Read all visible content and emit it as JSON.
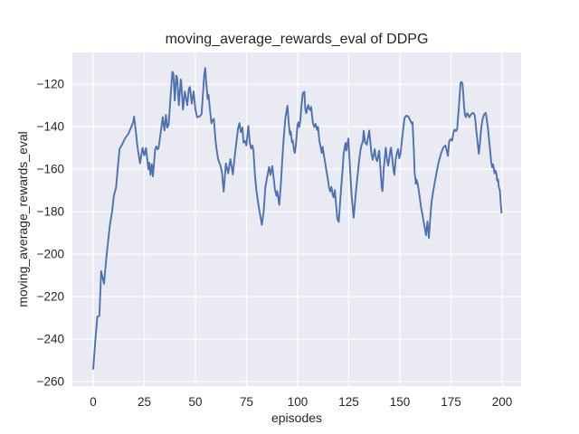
{
  "chart_data": {
    "type": "line",
    "title": "moving_average_rewards_eval of DDPG",
    "xlabel": "episodes",
    "ylabel": "moving_average_rewards_eval",
    "xlim": [
      -10.2,
      209.3
    ],
    "ylim": [
      -262.1,
      -105.1
    ],
    "xticks": [
      0,
      25,
      50,
      75,
      100,
      125,
      150,
      175,
      200
    ],
    "xtick_labels": [
      "0",
      "25",
      "50",
      "75",
      "100",
      "125",
      "150",
      "175",
      "200"
    ],
    "yticks": [
      -120,
      -140,
      -160,
      -180,
      -200,
      -220,
      -240,
      -260
    ],
    "ytick_labels": [
      "−120",
      "−140",
      "−160",
      "−180",
      "−200",
      "−220",
      "−240",
      "−260"
    ],
    "grid": true,
    "legend": "none",
    "colors": {
      "line": "#4c72b0",
      "plot_background": "#eaeaf2",
      "grid": "#ffffff",
      "text": "#262626",
      "figure_background": "#ffffff"
    },
    "series": [
      {
        "name": "moving_average_rewards_eval",
        "points": [
          [
            0,
            -254
          ],
          [
            1,
            -241
          ],
          [
            2,
            -229.5
          ],
          [
            3,
            -229
          ],
          [
            3.9,
            -208
          ],
          [
            5.3,
            -214
          ],
          [
            6.3,
            -203
          ],
          [
            7.2,
            -194.5
          ],
          [
            8.2,
            -186
          ],
          [
            9.3,
            -179.5
          ],
          [
            10.1,
            -172.5
          ],
          [
            11.2,
            -168.5
          ],
          [
            11.9,
            -160.5
          ],
          [
            12.9,
            -150.5
          ],
          [
            14.1,
            -148.5
          ],
          [
            15.6,
            -145.5
          ],
          [
            17.1,
            -143.5
          ],
          [
            18.5,
            -140.5
          ],
          [
            19.5,
            -138
          ],
          [
            20,
            -135.3
          ],
          [
            20.8,
            -142
          ],
          [
            21.7,
            -150
          ],
          [
            22.9,
            -157.3
          ],
          [
            24.1,
            -150
          ],
          [
            25,
            -153.5
          ],
          [
            25.8,
            -150
          ],
          [
            27,
            -160.1
          ],
          [
            27.4,
            -157
          ],
          [
            28,
            -162.7
          ],
          [
            28.6,
            -157.7
          ],
          [
            29.2,
            -163.4
          ],
          [
            30.3,
            -150.7
          ],
          [
            30.9,
            -149.3
          ],
          [
            31.5,
            -150.7
          ],
          [
            32,
            -150
          ],
          [
            32.6,
            -145.7
          ],
          [
            33.2,
            -141.4
          ],
          [
            34,
            -135.5
          ],
          [
            34.8,
            -141.8
          ],
          [
            35.6,
            -134.5
          ],
          [
            36.2,
            -140.5
          ],
          [
            36.9,
            -139
          ],
          [
            37.7,
            -127.8
          ],
          [
            38.7,
            -114.2
          ],
          [
            39.2,
            -115
          ],
          [
            39.9,
            -127.8
          ],
          [
            40.6,
            -116
          ],
          [
            41,
            -116.7
          ],
          [
            41.9,
            -129.9
          ],
          [
            42.8,
            -117.8
          ],
          [
            43,
            -118.5
          ],
          [
            43.9,
            -132
          ],
          [
            44.8,
            -123.5
          ],
          [
            46,
            -129.9
          ],
          [
            46.8,
            -122.1
          ],
          [
            47.3,
            -121.4
          ],
          [
            48.2,
            -129.2
          ],
          [
            49.1,
            -123.5
          ],
          [
            50,
            -132
          ],
          [
            50.8,
            -135.6
          ],
          [
            52,
            -135.2
          ],
          [
            53,
            -134.2
          ],
          [
            54.3,
            -115.7
          ],
          [
            54.8,
            -112.4
          ],
          [
            55.2,
            -118.5
          ],
          [
            56,
            -127.1
          ],
          [
            56.4,
            -124.9
          ],
          [
            57.1,
            -132
          ],
          [
            57.8,
            -138.4
          ],
          [
            58.4,
            -137
          ],
          [
            59,
            -136.3
          ],
          [
            59.8,
            -146.2
          ],
          [
            60.3,
            -150.4
          ],
          [
            61.1,
            -155.4
          ],
          [
            62.3,
            -158.5
          ],
          [
            63,
            -161.7
          ],
          [
            63.8,
            -170.6
          ],
          [
            64.9,
            -157.3
          ],
          [
            66,
            -162
          ],
          [
            67.1,
            -155.3
          ],
          [
            68.3,
            -162.5
          ],
          [
            69.3,
            -153.2
          ],
          [
            70.8,
            -141.2
          ],
          [
            71.5,
            -138.3
          ],
          [
            72.2,
            -142.6
          ],
          [
            73,
            -140.4
          ],
          [
            73.5,
            -147.5
          ],
          [
            74.3,
            -146.8
          ],
          [
            74.9,
            -148.9
          ],
          [
            75.9,
            -139.7
          ],
          [
            76.6,
            -147.5
          ],
          [
            77.2,
            -150.3
          ],
          [
            77.9,
            -148.9
          ],
          [
            78.4,
            -151.7
          ],
          [
            79.1,
            -162.7
          ],
          [
            79.8,
            -169.8
          ],
          [
            80.6,
            -175.5
          ],
          [
            81.3,
            -179.7
          ],
          [
            82,
            -183.3
          ],
          [
            82.5,
            -186.2
          ],
          [
            83.4,
            -179.7
          ],
          [
            84.2,
            -168.5
          ],
          [
            86,
            -159
          ],
          [
            86.7,
            -162.8
          ],
          [
            87.6,
            -158.6
          ],
          [
            88.9,
            -169.7
          ],
          [
            89.6,
            -172.5
          ],
          [
            90,
            -170.4
          ],
          [
            91,
            -176.8
          ],
          [
            91.8,
            -166.9
          ],
          [
            92.5,
            -155.1
          ],
          [
            93.2,
            -145.2
          ],
          [
            94,
            -135.9
          ],
          [
            95,
            -130.2
          ],
          [
            95.6,
            -138
          ],
          [
            96.2,
            -143.8
          ],
          [
            96.6,
            -142.3
          ],
          [
            97.2,
            -147.3
          ],
          [
            97.6,
            -146.6
          ],
          [
            98.2,
            -150.9
          ],
          [
            98.6,
            -152.4
          ],
          [
            99.2,
            -148.2
          ],
          [
            99.9,
            -139.5
          ],
          [
            100.4,
            -138
          ],
          [
            100.8,
            -140.2
          ],
          [
            101.3,
            -137.3
          ],
          [
            101.8,
            -130.9
          ],
          [
            102.5,
            -124.3
          ],
          [
            103.3,
            -123.6
          ],
          [
            103.7,
            -131.6
          ],
          [
            104.2,
            -133.7
          ],
          [
            104.8,
            -130.9
          ],
          [
            105.2,
            -129.8
          ],
          [
            105.6,
            -131.6
          ],
          [
            106.2,
            -132.3
          ],
          [
            106.6,
            -130.7
          ],
          [
            107.4,
            -138
          ],
          [
            108.1,
            -140.2
          ],
          [
            108.8,
            -138.7
          ],
          [
            109.5,
            -141.6
          ],
          [
            110,
            -140.2
          ],
          [
            110.6,
            -146.6
          ],
          [
            111.2,
            -149.5
          ],
          [
            111.8,
            -152.4
          ],
          [
            112.2,
            -149.5
          ],
          [
            112.9,
            -153.8
          ],
          [
            113.5,
            -157.3
          ],
          [
            114.1,
            -160.9
          ],
          [
            114.7,
            -164.2
          ],
          [
            115.3,
            -168.4
          ],
          [
            115.9,
            -170.5
          ],
          [
            116.5,
            -168.4
          ],
          [
            117.1,
            -171.9
          ],
          [
            117.6,
            -173.3
          ],
          [
            118.2,
            -169.8
          ],
          [
            118.8,
            -176.8
          ],
          [
            119.4,
            -183.3
          ],
          [
            120.1,
            -184.9
          ],
          [
            121.2,
            -169.8
          ],
          [
            121.9,
            -161.3
          ],
          [
            122.5,
            -152.7
          ],
          [
            123.4,
            -147.7
          ],
          [
            123.8,
            -151.3
          ],
          [
            124.8,
            -145.6
          ],
          [
            125.2,
            -152.7
          ],
          [
            125.8,
            -162.7
          ],
          [
            126.4,
            -172.5
          ],
          [
            127.4,
            -182.9
          ],
          [
            128.2,
            -174
          ],
          [
            128.9,
            -166.9
          ],
          [
            129.5,
            -161.3
          ],
          [
            130.1,
            -155.6
          ],
          [
            130.7,
            -151.3
          ],
          [
            131.3,
            -148.5
          ],
          [
            131.9,
            -147
          ],
          [
            132.3,
            -142
          ],
          [
            133,
            -147.5
          ],
          [
            133.8,
            -148.5
          ],
          [
            135,
            -141.8
          ],
          [
            136.1,
            -152.7
          ],
          [
            136.7,
            -155.6
          ],
          [
            137.7,
            -150.6
          ],
          [
            138.3,
            -154.9
          ],
          [
            138.9,
            -156.3
          ],
          [
            139.9,
            -151.3
          ],
          [
            141.1,
            -168.4
          ],
          [
            141.5,
            -170.4
          ],
          [
            142.1,
            -159.9
          ],
          [
            143.1,
            -149.9
          ],
          [
            143.7,
            -155.6
          ],
          [
            144.3,
            -158.4
          ],
          [
            145.3,
            -151.3
          ],
          [
            145.7,
            -149.9
          ],
          [
            146.9,
            -160.6
          ],
          [
            147.3,
            -162.7
          ],
          [
            147.9,
            -155.6
          ],
          [
            148.5,
            -152.7
          ],
          [
            149.1,
            -150.6
          ],
          [
            149.7,
            -154.9
          ],
          [
            150.3,
            -152.7
          ],
          [
            151.1,
            -145.6
          ],
          [
            152.3,
            -135.9
          ],
          [
            153.3,
            -134.8
          ],
          [
            154.3,
            -135.5
          ],
          [
            155.8,
            -138.6
          ],
          [
            156.2,
            -137.9
          ],
          [
            156.9,
            -152.7
          ],
          [
            157.2,
            -161.3
          ],
          [
            157.8,
            -166.9
          ],
          [
            158.1,
            -164.8
          ],
          [
            158.7,
            -166.9
          ],
          [
            159.2,
            -169.8
          ],
          [
            159.8,
            -174
          ],
          [
            160.4,
            -178.3
          ],
          [
            161,
            -181.1
          ],
          [
            161.6,
            -184.7
          ],
          [
            162.2,
            -187.6
          ],
          [
            162.8,
            -191.1
          ],
          [
            163.5,
            -184.7
          ],
          [
            164.2,
            -192.5
          ],
          [
            164.8,
            -183.9
          ],
          [
            165.3,
            -177.6
          ],
          [
            165.7,
            -174
          ],
          [
            166.3,
            -170.5
          ],
          [
            167.2,
            -165.5
          ],
          [
            168.3,
            -159.9
          ],
          [
            168.9,
            -157
          ],
          [
            169.5,
            -154.9
          ],
          [
            170.1,
            -152.7
          ],
          [
            170.7,
            -151.3
          ],
          [
            171.2,
            -149.9
          ],
          [
            172.3,
            -148.9
          ],
          [
            172.9,
            -151.3
          ],
          [
            173.5,
            -153.8
          ],
          [
            174.1,
            -147
          ],
          [
            174.8,
            -145.9
          ],
          [
            175.5,
            -146.6
          ],
          [
            176.4,
            -142.1
          ],
          [
            176.8,
            -141.4
          ],
          [
            177.4,
            -142.1
          ],
          [
            178,
            -141.4
          ],
          [
            178.8,
            -131.6
          ],
          [
            179.7,
            -119.4
          ],
          [
            180.1,
            -119
          ],
          [
            180.6,
            -119.6
          ],
          [
            181,
            -124.3
          ],
          [
            181.4,
            -130.6
          ],
          [
            181.8,
            -134.2
          ],
          [
            182.3,
            -135.6
          ],
          [
            182.7,
            -134.2
          ],
          [
            183.1,
            -133.7
          ],
          [
            183.5,
            -134.6
          ],
          [
            184,
            -135.6
          ],
          [
            184.9,
            -134.2
          ],
          [
            185.7,
            -133.5
          ],
          [
            186.1,
            -133.7
          ],
          [
            186.6,
            -134.6
          ],
          [
            187,
            -137.7
          ],
          [
            187.4,
            -142
          ],
          [
            187.9,
            -146.3
          ],
          [
            188.6,
            -152.8
          ],
          [
            189.2,
            -147.7
          ],
          [
            189.6,
            -142.7
          ],
          [
            190,
            -139.2
          ],
          [
            190.5,
            -136.3
          ],
          [
            191.3,
            -134.2
          ],
          [
            192,
            -133.5
          ],
          [
            192.5,
            -136.6
          ],
          [
            193.1,
            -140.9
          ],
          [
            193.7,
            -147
          ],
          [
            194.3,
            -152.7
          ],
          [
            194.7,
            -157
          ],
          [
            195.2,
            -159.2
          ],
          [
            195.6,
            -157.7
          ],
          [
            196.3,
            -162
          ],
          [
            196.7,
            -160.6
          ],
          [
            197.2,
            -162
          ],
          [
            197.6,
            -165.5
          ],
          [
            198,
            -164.8
          ],
          [
            198.4,
            -168.4
          ],
          [
            198.9,
            -169.8
          ],
          [
            199.3,
            -175.4
          ],
          [
            199.7,
            -180.5
          ]
        ]
      }
    ]
  }
}
